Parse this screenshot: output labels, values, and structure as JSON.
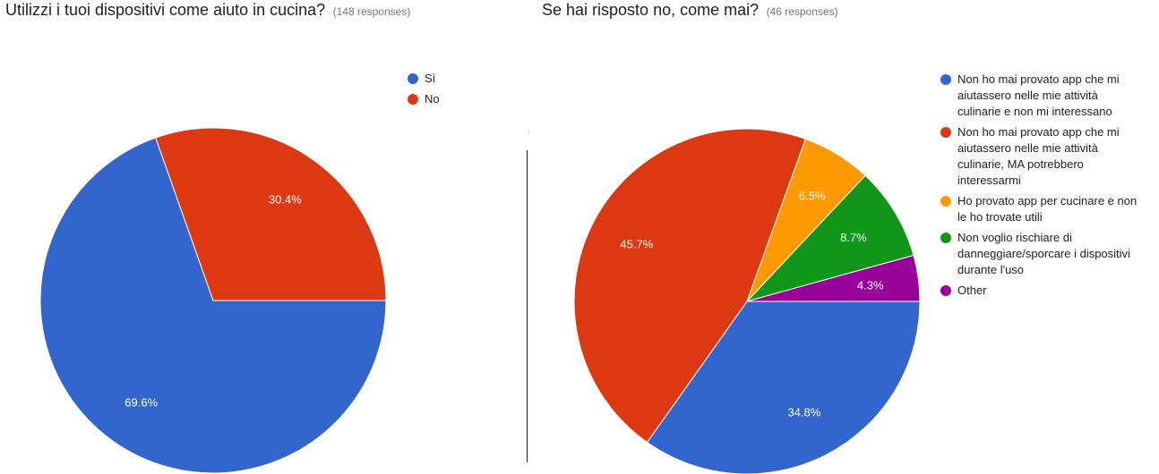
{
  "charts": [
    {
      "question": "Utilizzi i tuoi dispositivi come aiuto in cucina?",
      "responses": "(148 responses)"
    },
    {
      "question": "Se hai risposto no, come mai?",
      "responses": "(46 responses)"
    }
  ],
  "chart_data": [
    {
      "type": "pie",
      "title": "Utilizzi i tuoi dispositivi come aiuto in cucina?",
      "subtitle": "(148 responses)",
      "legend_position": "right",
      "slices": [
        {
          "label": "Sì",
          "value": 69.6,
          "value_label": "69.6%",
          "color": "#3366cc"
        },
        {
          "label": "No",
          "value": 30.4,
          "value_label": "30.4%",
          "color": "#dc3912"
        }
      ]
    },
    {
      "type": "pie",
      "title": "Se hai risposto no, come mai?",
      "subtitle": "(46 responses)",
      "legend_position": "right",
      "slices": [
        {
          "label": "Non ho mai provato app che mi aiutassero nelle mie attività culinarie e non mi interessano",
          "value": 34.8,
          "value_label": "34.8%",
          "color": "#3366cc"
        },
        {
          "label": "Non ho mai provato app che mi aiutassero nelle mie attività culinarie, MA potrebbero interessarmi",
          "value": 45.7,
          "value_label": "45.7%",
          "color": "#dc3912"
        },
        {
          "label": "Ho provato app per cucinare e non le ho trovate utili",
          "value": 6.5,
          "value_label": "6.5%",
          "color": "#ff9900"
        },
        {
          "label": "Non voglio rischiare di danneggiare/sporcare i dispositivi durante l'uso",
          "value": 8.7,
          "value_label": "8.7%",
          "color": "#109618"
        },
        {
          "label": "Other",
          "value": 4.3,
          "value_label": "4.3%",
          "color": "#990099"
        }
      ]
    }
  ]
}
